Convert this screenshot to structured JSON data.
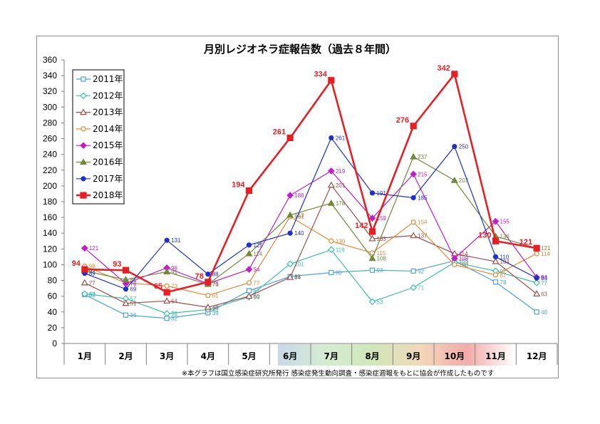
{
  "chart_data": {
    "type": "line",
    "title": "月別レジオネラ症報告数（過去８年間）",
    "categories": [
      "1月",
      "2月",
      "3月",
      "4月",
      "5月",
      "6月",
      "7月",
      "8月",
      "9月",
      "10月",
      "11月",
      "12月"
    ],
    "ylim": [
      0,
      360
    ],
    "yticks": [
      0,
      20,
      40,
      60,
      80,
      100,
      120,
      140,
      160,
      180,
      200,
      220,
      240,
      260,
      280,
      300,
      320,
      340,
      360
    ],
    "grid": false,
    "legend_position": "top-left",
    "series": [
      {
        "name": "2011年",
        "color": "#4aa3d8",
        "marker": "square-open",
        "values": [
          62,
          36,
          32,
          39,
          67,
          85,
          90,
          93,
          92,
          105,
          78,
          40
        ]
      },
      {
        "name": "2012年",
        "color": "#3cc0a8",
        "marker": "diamond-open",
        "values": [
          63,
          57,
          38,
          43,
          59,
          101,
          119,
          53,
          71,
          103,
          92,
          77
        ]
      },
      {
        "name": "2013年",
        "color": "#a0504a",
        "marker": "triangle-open",
        "values": [
          77,
          51,
          54,
          46,
          60,
          84,
          201,
          133,
          137,
          114,
          104,
          63
        ]
      },
      {
        "name": "2014年",
        "color": "#e08a3a",
        "marker": "circle-open",
        "values": [
          98,
          77,
          73,
          61,
          77,
          161,
          130,
          115,
          154,
          100,
          87,
          114
        ]
      },
      {
        "name": "2015年",
        "color": "#c21ecb",
        "marker": "diamond",
        "values": [
          121,
          76,
          96,
          76,
          94,
          188,
          219,
          159,
          215,
          108,
          155,
          84
        ]
      },
      {
        "name": "2016年",
        "color": "#72893a",
        "marker": "triangle",
        "values": [
          92,
          81,
          91,
          75,
          114,
          163,
          178,
          108,
          237,
          207,
          136,
          121
        ]
      },
      {
        "name": "2017年",
        "color": "#1f2fd0",
        "marker": "circle",
        "values": [
          89,
          69,
          131,
          88,
          125,
          140,
          261,
          191,
          185,
          250,
          110,
          83
        ]
      },
      {
        "name": "2018年",
        "color": "#e81e25",
        "marker": "square",
        "values": [
          94,
          93,
          65,
          78,
          194,
          261,
          334,
          142,
          276,
          342,
          130,
          121
        ]
      }
    ]
  },
  "footnote": "※本グラフは国立感染症研究所発行 感染症発生動向調査・感染症週報をもとに協会が作成したものです"
}
